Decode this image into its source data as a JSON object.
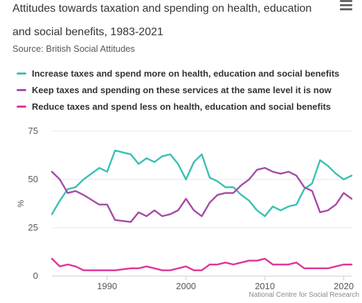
{
  "header": {
    "title_line1": "Attitudes towards taxation and spending on health, education",
    "title_line2": "and social benefits, 1983-2021",
    "subtitle": "Source: British Social Attitudes",
    "menu_icon": "hamburger-menu-icon"
  },
  "credit": "National Centre for Social Research",
  "colors": {
    "increase": "#3cc0b4",
    "keep": "#a64ca6",
    "reduce": "#e0359a",
    "grid": "#e6e6e6",
    "axis": "#cccccc"
  },
  "chart_data": {
    "type": "line",
    "title": "Attitudes towards taxation and spending on health, education and social benefits, 1983-2021",
    "subtitle": "Source: British Social Attitudes",
    "xlabel": "",
    "ylabel": "%",
    "xlim": [
      1983,
      2021
    ],
    "ylim": [
      0,
      75
    ],
    "xticks": [
      1990,
      2000,
      2010,
      2020
    ],
    "yticks": [
      0,
      25,
      50,
      75
    ],
    "grid": true,
    "legend_position": "top-left",
    "series": [
      {
        "name": "Increase taxes and spend more on health, education and social benefits",
        "color": "#3cc0b4",
        "points": [
          [
            1983,
            32
          ],
          [
            1984,
            39
          ],
          [
            1985,
            45
          ],
          [
            1986,
            46
          ],
          [
            1987,
            50
          ],
          [
            1989,
            56
          ],
          [
            1990,
            54
          ],
          [
            1991,
            65
          ],
          [
            1993,
            63
          ],
          [
            1994,
            58
          ],
          [
            1995,
            61
          ],
          [
            1996,
            59
          ],
          [
            1997,
            62
          ],
          [
            1998,
            63
          ],
          [
            1999,
            58
          ],
          [
            2000,
            50
          ],
          [
            2001,
            59
          ],
          [
            2002,
            63
          ],
          [
            2003,
            51
          ],
          [
            2004,
            49
          ],
          [
            2005,
            46
          ],
          [
            2006,
            46
          ],
          [
            2007,
            42
          ],
          [
            2008,
            39
          ],
          [
            2009,
            34
          ],
          [
            2010,
            31
          ],
          [
            2011,
            36
          ],
          [
            2012,
            34
          ],
          [
            2013,
            36
          ],
          [
            2014,
            37
          ],
          [
            2015,
            45
          ],
          [
            2016,
            48
          ],
          [
            2017,
            60
          ],
          [
            2018,
            57
          ],
          [
            2019,
            53
          ],
          [
            2020,
            50
          ],
          [
            2021,
            52
          ]
        ]
      },
      {
        "name": "Keep taxes and spending on these services at the same level it is now",
        "color": "#a64ca6",
        "points": [
          [
            1983,
            54
          ],
          [
            1984,
            50
          ],
          [
            1985,
            43
          ],
          [
            1986,
            44
          ],
          [
            1987,
            42
          ],
          [
            1989,
            37
          ],
          [
            1990,
            37
          ],
          [
            1991,
            29
          ],
          [
            1993,
            28
          ],
          [
            1994,
            33
          ],
          [
            1995,
            31
          ],
          [
            1996,
            34
          ],
          [
            1997,
            31
          ],
          [
            1998,
            32
          ],
          [
            1999,
            34
          ],
          [
            2000,
            40
          ],
          [
            2001,
            34
          ],
          [
            2002,
            31
          ],
          [
            2003,
            38
          ],
          [
            2004,
            42
          ],
          [
            2005,
            43
          ],
          [
            2006,
            43
          ],
          [
            2007,
            47
          ],
          [
            2008,
            50
          ],
          [
            2009,
            55
          ],
          [
            2010,
            56
          ],
          [
            2011,
            54
          ],
          [
            2012,
            53
          ],
          [
            2013,
            54
          ],
          [
            2014,
            52
          ],
          [
            2015,
            46
          ],
          [
            2016,
            44
          ],
          [
            2017,
            33
          ],
          [
            2018,
            34
          ],
          [
            2019,
            37
          ],
          [
            2020,
            43
          ],
          [
            2021,
            40
          ]
        ]
      },
      {
        "name": "Reduce taxes and spend less on health, education and social benefits",
        "color": "#e0359a",
        "points": [
          [
            1983,
            9
          ],
          [
            1984,
            5
          ],
          [
            1985,
            6
          ],
          [
            1986,
            5
          ],
          [
            1987,
            3
          ],
          [
            1989,
            3
          ],
          [
            1990,
            3
          ],
          [
            1991,
            3
          ],
          [
            1993,
            4
          ],
          [
            1994,
            4
          ],
          [
            1995,
            5
          ],
          [
            1996,
            4
          ],
          [
            1997,
            3
          ],
          [
            1998,
            3
          ],
          [
            1999,
            4
          ],
          [
            2000,
            5
          ],
          [
            2001,
            3
          ],
          [
            2002,
            3
          ],
          [
            2003,
            6
          ],
          [
            2004,
            6
          ],
          [
            2005,
            7
          ],
          [
            2006,
            6
          ],
          [
            2007,
            7
          ],
          [
            2008,
            8
          ],
          [
            2009,
            8
          ],
          [
            2010,
            9
          ],
          [
            2011,
            6
          ],
          [
            2012,
            6
          ],
          [
            2013,
            6
          ],
          [
            2014,
            7
          ],
          [
            2015,
            4
          ],
          [
            2016,
            4
          ],
          [
            2017,
            4
          ],
          [
            2018,
            4
          ],
          [
            2019,
            5
          ],
          [
            2020,
            6
          ],
          [
            2021,
            6
          ]
        ]
      }
    ]
  }
}
